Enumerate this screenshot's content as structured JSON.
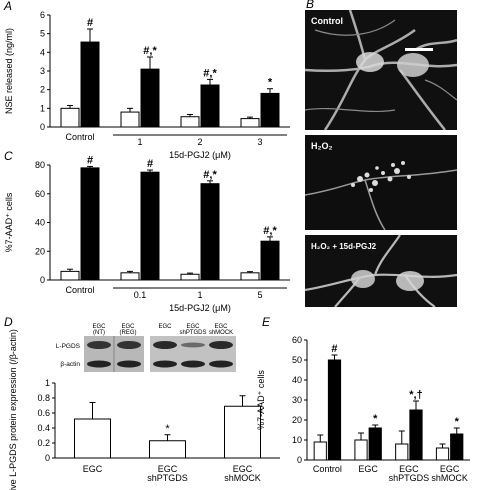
{
  "panel_letters": [
    "A",
    "B",
    "C",
    "D",
    "E"
  ],
  "micrograph_labels": [
    "Control",
    "H₂O₂",
    "H₂O₂ + 15d-PGJ2"
  ],
  "blot": {
    "row_labels": [
      "L-PGDS",
      "β-actin"
    ],
    "lane_labels": [
      "EGC\n(NT)",
      "EGC\n(REG)",
      "EGC",
      "EGC\nshPTGDS",
      "EGC\nshMOCK"
    ]
  },
  "colors": {
    "bar_open": "#ffffff",
    "bar_filled": "#000000",
    "axis": "#000000"
  },
  "chart_data": [
    {
      "panel": "A",
      "type": "bar",
      "ylabel": "NSE released (ng/ml)",
      "ylim": [
        0,
        6
      ],
      "yticks": [
        0,
        1,
        2,
        3,
        4,
        5,
        6
      ],
      "groups": [
        "Control",
        "1",
        "2",
        "3"
      ],
      "bracket_labels": [
        "1",
        "2",
        "3"
      ],
      "group_label": "15d-PGJ2 (μM)",
      "series": [
        {
          "values": [
            1.0,
            0.8,
            0.55,
            0.45
          ],
          "errors": [
            0.15,
            0.2,
            0.12,
            0.08
          ],
          "color": "#ffffff"
        },
        {
          "values": [
            4.55,
            3.1,
            2.25,
            1.8
          ],
          "errors": [
            0.7,
            0.65,
            0.3,
            0.25
          ],
          "color": "#000000"
        }
      ],
      "annotations": [
        "#",
        "#,*",
        "#,*",
        "*"
      ]
    },
    {
      "panel": "C",
      "type": "bar",
      "ylabel": "%7-AAD⁺ cells",
      "ylim": [
        0,
        80
      ],
      "yticks": [
        0,
        20,
        40,
        60,
        80
      ],
      "groups": [
        "Control",
        "0.1",
        "1",
        "5"
      ],
      "bracket_labels": [
        "0.1",
        "1",
        "5"
      ],
      "group_label": "15d-PGJ2 (μM)",
      "series": [
        {
          "values": [
            6,
            5,
            4,
            5
          ],
          "errors": [
            1.5,
            1,
            0.8,
            0.8
          ],
          "color": "#ffffff"
        },
        {
          "values": [
            78,
            75,
            67,
            27
          ],
          "errors": [
            1,
            1.5,
            2,
            3
          ],
          "color": "#000000"
        }
      ],
      "annotations": [
        "#",
        "#",
        "#,*",
        "#,*"
      ]
    },
    {
      "panel": "D",
      "type": "bar",
      "ylabel": "Relative L-PGDS protein expression (/β-actin)",
      "ylim": [
        0,
        1
      ],
      "yticks": [
        0,
        0.2,
        0.4,
        0.6,
        0.8,
        1
      ],
      "categories": [
        "EGC",
        "EGC\nshPTGDS",
        "EGC\nshMOCK"
      ],
      "values": [
        0.52,
        0.23,
        0.69
      ],
      "errors": [
        0.22,
        0.08,
        0.14
      ],
      "annotations": [
        "",
        "*",
        ""
      ]
    },
    {
      "panel": "E",
      "type": "bar",
      "ylabel": "%7-AAD⁺ cells",
      "ylim": [
        0,
        60
      ],
      "yticks": [
        0,
        10,
        20,
        30,
        40,
        50,
        60
      ],
      "groups": [
        "Control",
        "EGC",
        "EGC\nshPTGDS",
        "EGC\nshMOCK"
      ],
      "series": [
        {
          "values": [
            9,
            10,
            8,
            6
          ],
          "errors": [
            3.5,
            3.5,
            6.5,
            2
          ],
          "color": "#ffffff"
        },
        {
          "values": [
            50,
            16,
            25,
            13
          ],
          "errors": [
            2.5,
            1.5,
            4.5,
            3
          ],
          "color": "#000000"
        }
      ],
      "annotations": [
        "#",
        "*",
        "*,†",
        "*"
      ]
    }
  ]
}
